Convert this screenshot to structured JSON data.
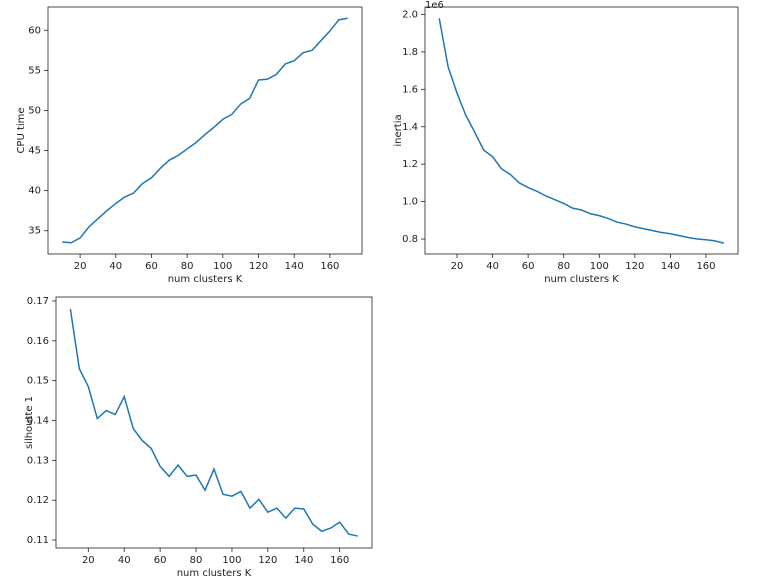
{
  "chart_data": [
    {
      "type": "line",
      "xlabel": "num clusters K",
      "ylabel": "CPU time",
      "x": [
        10,
        15,
        20,
        25,
        30,
        35,
        40,
        45,
        50,
        55,
        60,
        65,
        70,
        75,
        80,
        85,
        90,
        95,
        100,
        105,
        110,
        115,
        120,
        125,
        130,
        135,
        140,
        145,
        150,
        155,
        160,
        165,
        170
      ],
      "series": [
        {
          "color": "#1f77b4",
          "values": [
            33.6,
            33.5,
            34.1,
            35.5,
            36.5,
            37.5,
            38.4,
            39.2,
            39.7,
            40.9,
            41.6,
            42.8,
            43.8,
            44.4,
            45.2,
            46.0,
            47.0,
            47.9,
            48.9,
            49.5,
            50.8,
            51.5,
            53.8,
            53.9,
            54.5,
            55.8,
            56.2,
            57.2,
            57.5,
            58.7,
            59.9,
            61.3,
            61.5
          ]
        }
      ],
      "xlim": [
        2,
        178
      ],
      "xticks": [
        20,
        40,
        60,
        80,
        100,
        120,
        140,
        160
      ],
      "ylim": [
        32.1,
        62.9
      ],
      "yticks": [
        35,
        40,
        45,
        50,
        55,
        60
      ]
    },
    {
      "type": "line",
      "xlabel": "num clusters K",
      "ylabel": "inertia",
      "offset_text": "1e6",
      "x": [
        10,
        15,
        20,
        25,
        30,
        35,
        40,
        45,
        50,
        55,
        60,
        65,
        70,
        75,
        80,
        85,
        90,
        95,
        100,
        105,
        110,
        115,
        120,
        125,
        130,
        135,
        140,
        145,
        150,
        155,
        160,
        165,
        170
      ],
      "series": [
        {
          "color": "#1f77b4",
          "values": [
            1.98,
            1.72,
            1.58,
            1.46,
            1.37,
            1.275,
            1.24,
            1.175,
            1.145,
            1.1,
            1.075,
            1.055,
            1.03,
            1.01,
            0.99,
            0.965,
            0.955,
            0.935,
            0.925,
            0.91,
            0.89,
            0.88,
            0.865,
            0.855,
            0.845,
            0.835,
            0.828,
            0.818,
            0.808,
            0.8,
            0.796,
            0.79,
            0.778
          ]
        }
      ],
      "xlim": [
        2,
        178
      ],
      "xticks": [
        20,
        40,
        60,
        80,
        100,
        120,
        140,
        160
      ],
      "ylim": [
        0.72,
        2.04
      ],
      "yticks": [
        0.8,
        {
          "value": 1.0,
          "label": "1.0"
        },
        1.2,
        1.4,
        1.6,
        1.8,
        {
          "value": 2.0,
          "label": "2.0"
        }
      ]
    },
    {
      "type": "line",
      "xlabel": "num clusters K",
      "ylabel": "silhoutte 1",
      "x": [
        10,
        15,
        20,
        25,
        30,
        35,
        40,
        45,
        50,
        55,
        60,
        65,
        70,
        75,
        80,
        85,
        90,
        95,
        100,
        105,
        110,
        115,
        120,
        125,
        130,
        135,
        140,
        145,
        150,
        155,
        160,
        165,
        170
      ],
      "series": [
        {
          "color": "#1f77b4",
          "values": [
            0.168,
            0.153,
            0.1485,
            0.1405,
            0.1425,
            0.1415,
            0.146,
            0.138,
            0.135,
            0.133,
            0.1285,
            0.126,
            0.1288,
            0.126,
            0.1263,
            0.1225,
            0.1278,
            0.1215,
            0.121,
            0.1222,
            0.118,
            0.1202,
            0.117,
            0.118,
            0.1155,
            0.118,
            0.1178,
            0.114,
            0.1122,
            0.113,
            0.1145,
            0.1115,
            0.111
          ]
        }
      ],
      "xlim": [
        2,
        178
      ],
      "xticks": [
        20,
        40,
        60,
        80,
        100,
        120,
        140,
        160
      ],
      "ylim": [
        0.108,
        0.171
      ],
      "yticks": [
        0.11,
        0.12,
        0.13,
        0.14,
        0.15,
        0.16,
        0.17
      ]
    }
  ]
}
